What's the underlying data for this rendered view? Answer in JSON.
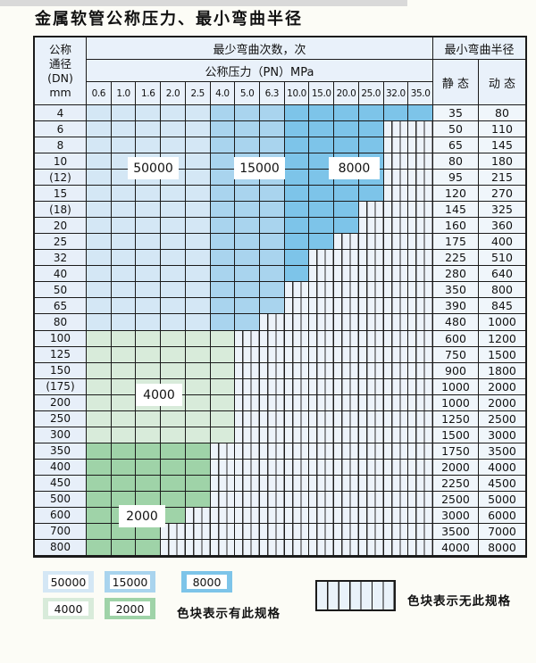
{
  "title": "金属软管公称压力、最小弯曲半径",
  "table": {
    "header": {
      "dn_lines": [
        "公称",
        "通径",
        "(DN)",
        "mm"
      ],
      "bend_times": "最少弯曲次数，次",
      "pressure": "公称压力（PN）MPa",
      "pressures": [
        "0.6",
        "1.0",
        "1.6",
        "2.0",
        "2.5",
        "4.0",
        "5.0",
        "6.3",
        "10.0",
        "15.0",
        "20.0",
        "25.0",
        "32.0",
        "35.0"
      ],
      "radius": "最小弯曲半径",
      "static": "静 态",
      "dynamic": "动 态"
    },
    "blue_zones": [
      {
        "label": "50000",
        "from": 0,
        "to": 4
      },
      {
        "label": "15000",
        "from": 5,
        "to": 7
      },
      {
        "label": "8000",
        "from": 8,
        "to": 13
      }
    ],
    "rows": [
      {
        "dn": "4",
        "colored": 14,
        "family": "blue",
        "static": "35",
        "dynamic": "80"
      },
      {
        "dn": "6",
        "colored": 12,
        "family": "blue",
        "static": "50",
        "dynamic": "110"
      },
      {
        "dn": "8",
        "colored": 12,
        "family": "blue",
        "static": "65",
        "dynamic": "145"
      },
      {
        "dn": "10",
        "colored": 12,
        "family": "blue",
        "static": "80",
        "dynamic": "180"
      },
      {
        "dn": "(12)",
        "colored": 12,
        "family": "blue",
        "static": "95",
        "dynamic": "215"
      },
      {
        "dn": "15",
        "colored": 12,
        "family": "blue",
        "static": "120",
        "dynamic": "270"
      },
      {
        "dn": "(18)",
        "colored": 11,
        "family": "blue",
        "static": "145",
        "dynamic": "325"
      },
      {
        "dn": "20",
        "colored": 11,
        "family": "blue",
        "static": "160",
        "dynamic": "360"
      },
      {
        "dn": "25",
        "colored": 10,
        "family": "blue",
        "static": "175",
        "dynamic": "400"
      },
      {
        "dn": "32",
        "colored": 9,
        "family": "blue",
        "static": "225",
        "dynamic": "510"
      },
      {
        "dn": "40",
        "colored": 9,
        "family": "blue",
        "static": "280",
        "dynamic": "640"
      },
      {
        "dn": "50",
        "colored": 8,
        "family": "blue",
        "static": "350",
        "dynamic": "800"
      },
      {
        "dn": "65",
        "colored": 8,
        "family": "blue",
        "static": "390",
        "dynamic": "845"
      },
      {
        "dn": "80",
        "colored": 7,
        "family": "blue",
        "static": "480",
        "dynamic": "1000"
      },
      {
        "dn": "100",
        "colored": 6,
        "family": "4000",
        "static": "600",
        "dynamic": "1200"
      },
      {
        "dn": "125",
        "colored": 6,
        "family": "4000",
        "static": "750",
        "dynamic": "1500"
      },
      {
        "dn": "150",
        "colored": 6,
        "family": "4000",
        "static": "900",
        "dynamic": "1800"
      },
      {
        "dn": "(175)",
        "colored": 6,
        "family": "4000",
        "static": "1000",
        "dynamic": "2000"
      },
      {
        "dn": "200",
        "colored": 6,
        "family": "4000",
        "static": "1000",
        "dynamic": "2000"
      },
      {
        "dn": "250",
        "colored": 6,
        "family": "4000",
        "static": "1250",
        "dynamic": "2500"
      },
      {
        "dn": "300",
        "colored": 6,
        "family": "4000",
        "static": "1500",
        "dynamic": "3000"
      },
      {
        "dn": "350",
        "colored": 5,
        "family": "2000",
        "static": "1750",
        "dynamic": "3500"
      },
      {
        "dn": "400",
        "colored": 5,
        "family": "2000",
        "static": "2000",
        "dynamic": "4000"
      },
      {
        "dn": "450",
        "colored": 5,
        "family": "2000",
        "static": "2250",
        "dynamic": "4500"
      },
      {
        "dn": "500",
        "colored": 5,
        "family": "2000",
        "static": "2500",
        "dynamic": "5000"
      },
      {
        "dn": "600",
        "colored": 4,
        "family": "2000",
        "static": "3000",
        "dynamic": "6000"
      },
      {
        "dn": "700",
        "colored": 3,
        "family": "2000",
        "static": "3500",
        "dynamic": "7000"
      },
      {
        "dn": "800",
        "colored": 3,
        "family": "2000",
        "static": "4000",
        "dynamic": "8000"
      }
    ]
  },
  "overlay_labels": [
    {
      "text": "50000"
    },
    {
      "text": "15000"
    },
    {
      "text": "8000"
    },
    {
      "text": "4000"
    },
    {
      "text": "2000"
    }
  ],
  "legend": {
    "swatches": [
      {
        "label": "50000"
      },
      {
        "label": "15000"
      },
      {
        "label": "8000"
      },
      {
        "label": "4000"
      },
      {
        "label": "2000"
      }
    ],
    "has_spec_text": "色块表示有此规格",
    "no_spec_text": "色块表示无此规格"
  },
  "colors": {
    "border": "#1b1b1b",
    "header_bg": "#e9f1fa",
    "dn_col_bg": "#e7eff9",
    "value_col_bg": "#f0f6fb",
    "hatch_bg": "#edf3fa",
    "page_bg": "#fcfcf6",
    "zone_colors": {
      "50000": "#d4e7f5",
      "15000": "#a9d4ee",
      "8000": "#7dc4e9",
      "4000": "#d8ebda",
      "2000": "#9fd3a8"
    }
  }
}
